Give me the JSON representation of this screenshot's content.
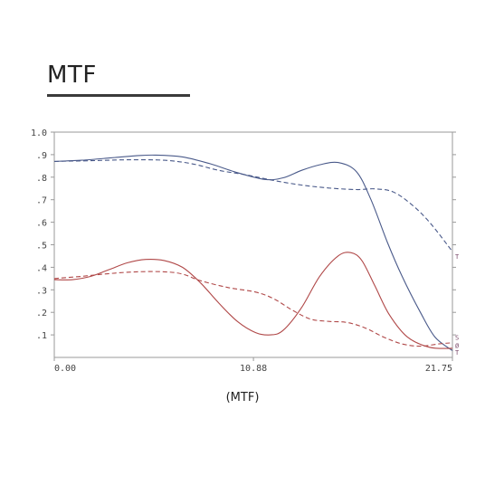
{
  "title": "MTF",
  "caption": "(MTF)",
  "chart_data": {
    "type": "line",
    "xlim": [
      0,
      21.75
    ],
    "ylim": [
      0,
      1.0
    ],
    "x_tick_labels": [
      "0.00",
      "10.88",
      "21.75"
    ],
    "x_tick_values": [
      0,
      10.88,
      21.75
    ],
    "y_tick_labels": [
      ".1",
      ".2",
      ".3",
      ".4",
      ".5",
      ".6",
      ".7",
      ".8",
      ".9",
      "1.0"
    ],
    "y_tick_values": [
      0.1,
      0.2,
      0.3,
      0.4,
      0.5,
      0.6,
      0.7,
      0.8,
      0.9,
      1.0
    ],
    "end_markers": [
      "T",
      "S",
      "Ø",
      "T"
    ],
    "grid": false,
    "series": [
      {
        "color": "#4a5a8a",
        "dash": "solid",
        "x": [
          0,
          1.5,
          3,
          4.5,
          5.5,
          7,
          8.5,
          10,
          11.5,
          12.5,
          13.5,
          14.5,
          15.5,
          16.5,
          17.3,
          18.2,
          19,
          20,
          20.8,
          21.75
        ],
        "y": [
          0.87,
          0.875,
          0.885,
          0.895,
          0.898,
          0.89,
          0.86,
          0.82,
          0.79,
          0.797,
          0.83,
          0.855,
          0.865,
          0.825,
          0.7,
          0.51,
          0.36,
          0.2,
          0.09,
          0.03
        ]
      },
      {
        "color": "#4a5a8a",
        "dash": "dashed",
        "x": [
          0,
          2,
          4,
          6,
          7.5,
          9,
          10.5,
          12,
          13.5,
          15,
          16.5,
          17.5,
          18.5,
          19.5,
          20.5,
          21.75
        ],
        "y": [
          0.87,
          0.873,
          0.877,
          0.875,
          0.86,
          0.83,
          0.81,
          0.785,
          0.765,
          0.752,
          0.745,
          0.748,
          0.735,
          0.68,
          0.6,
          0.47
        ]
      },
      {
        "color": "#b04848",
        "dash": "solid",
        "x": [
          0,
          1,
          2,
          3,
          4,
          5,
          6,
          7,
          8,
          9,
          10,
          11,
          11.8,
          12.5,
          13.5,
          14.5,
          15.5,
          16.2,
          16.8,
          17.5,
          18.3,
          19.3,
          20.5,
          21.75
        ],
        "y": [
          0.345,
          0.345,
          0.36,
          0.39,
          0.42,
          0.435,
          0.43,
          0.4,
          0.33,
          0.24,
          0.16,
          0.11,
          0.1,
          0.12,
          0.22,
          0.36,
          0.45,
          0.465,
          0.43,
          0.32,
          0.19,
          0.09,
          0.045,
          0.04
        ]
      },
      {
        "color": "#b04848",
        "dash": "dashed",
        "x": [
          0,
          1.5,
          3,
          4.5,
          6,
          7,
          8,
          9.5,
          11,
          12,
          13,
          14,
          15,
          16,
          17,
          18,
          19,
          20,
          21,
          21.75
        ],
        "y": [
          0.35,
          0.36,
          0.372,
          0.38,
          0.38,
          0.37,
          0.34,
          0.31,
          0.29,
          0.26,
          0.21,
          0.17,
          0.16,
          0.155,
          0.13,
          0.09,
          0.06,
          0.05,
          0.06,
          0.065
        ]
      }
    ]
  }
}
